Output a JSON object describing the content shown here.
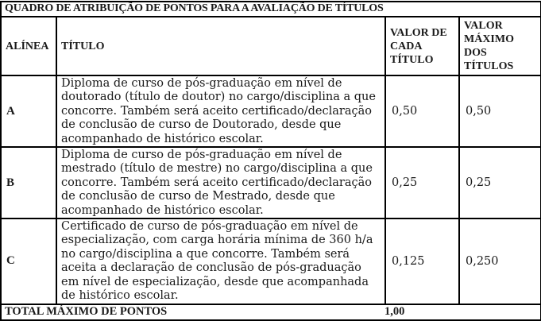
{
  "colors": {
    "border": "#000000",
    "background": "#ffffff",
    "text": "#1a1a1a"
  },
  "table": {
    "title": "QUADRO DE ATRIBUIÇÃO DE PONTOS PARA A AVALIAÇÃO DE TÍTULOS",
    "columns": [
      "ALÍNEA",
      "TÍTULO",
      "VALOR DE CADA TÍTULO",
      "VALOR MÁXIMO DOS TÍTULOS"
    ],
    "rows": [
      {
        "alinea": "A",
        "titulo": "Diploma de curso de pós-graduação em nível de doutorado (título de doutor) no cargo/disciplina a que concorre. Também será aceito certificado/declaração de conclusão de curso de Doutorado, desde que acompanhado de histórico escolar.",
        "valor_cada": "0,50",
        "valor_max": "0,50"
      },
      {
        "alinea": "B",
        "titulo": "Diploma de curso de pós-graduação em nível de mestrado (título de mestre) no cargo/disciplina a que concorre. Também será aceito certificado/declaração de conclusão de curso de Mestrado, desde que acompanhado de histórico escolar.",
        "valor_cada": "0,25",
        "valor_max": "0,25"
      },
      {
        "alinea": "C",
        "titulo": "Certificado de curso de pós-graduação em nível de especialização, com carga horária mínima de 360 h/a no cargo/disciplina a que concorre. Também será aceita a declaração de conclusão de pós-graduação em nível de especialização, desde que acompanhada de histórico escolar.",
        "valor_cada": "0,125",
        "valor_max": "0,250"
      }
    ],
    "footer": {
      "label": "TOTAL MÁXIMO DE PONTOS",
      "total": "1,00"
    }
  }
}
